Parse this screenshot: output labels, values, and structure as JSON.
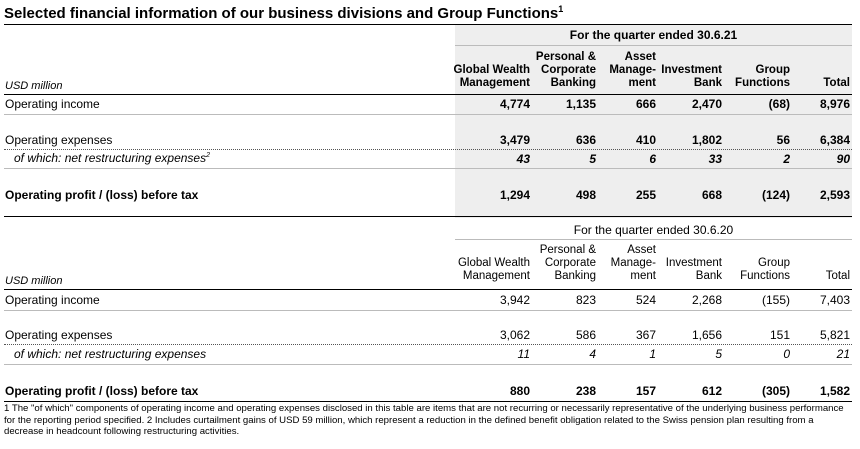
{
  "title": "Selected financial information of our business divisions and Group Functions",
  "title_sup": "1",
  "columns": [
    {
      "l1": "",
      "l2": "Global Wealth",
      "l3": "Management"
    },
    {
      "l1": "Personal &",
      "l2": "Corporate",
      "l3": "Banking"
    },
    {
      "l1": "Asset",
      "l2": "Manage-",
      "l3": "ment"
    },
    {
      "l1": "",
      "l2": "Investment",
      "l3": "Bank"
    },
    {
      "l1": "",
      "l2": "Group",
      "l3": "Functions"
    },
    {
      "l1": "",
      "l2": "",
      "l3": "Total"
    }
  ],
  "unit_label": "USD million",
  "sections": [
    {
      "period": "For the quarter ended 30.6.21",
      "rows": {
        "op_income": {
          "label": "Operating income",
          "values": [
            "4,774",
            "1,135",
            "666",
            "2,470",
            "(68)",
            "8,976"
          ]
        },
        "op_expenses": {
          "label": "Operating expenses",
          "values": [
            "3,479",
            "636",
            "410",
            "1,802",
            "56",
            "6,384"
          ]
        },
        "restructuring": {
          "label": "of which: net restructuring expenses",
          "label_sup": "2",
          "values": [
            "43",
            "5",
            "6",
            "33",
            "2",
            "90"
          ]
        },
        "op_profit": {
          "label": "Operating profit / (loss) before tax",
          "values": [
            "1,294",
            "498",
            "255",
            "668",
            "(124)",
            "2,593"
          ]
        }
      }
    },
    {
      "period": "For the quarter ended 30.6.20",
      "rows": {
        "op_income": {
          "label": "Operating income",
          "values": [
            "3,942",
            "823",
            "524",
            "2,268",
            "(155)",
            "7,403"
          ]
        },
        "op_expenses": {
          "label": "Operating expenses",
          "values": [
            "3,062",
            "586",
            "367",
            "1,656",
            "151",
            "5,821"
          ]
        },
        "restructuring": {
          "label": "of which: net restructuring expenses",
          "values": [
            "11",
            "4",
            "1",
            "5",
            "0",
            "21"
          ]
        },
        "op_profit": {
          "label": "Operating profit / (loss) before tax",
          "values": [
            "880",
            "238",
            "157",
            "612",
            "(305)",
            "1,582"
          ]
        }
      }
    }
  ],
  "footnote": "1 The \"of which\" components of operating income and operating expenses disclosed in this table are items that are not recurring or necessarily representative of the underlying business performance for the reporting period specified.   2 Includes curtailment gains of USD 59 million, which represent a reduction in the defined benefit obligation related to the Swiss pension plan resulting from a decrease in headcount following restructuring activities."
}
